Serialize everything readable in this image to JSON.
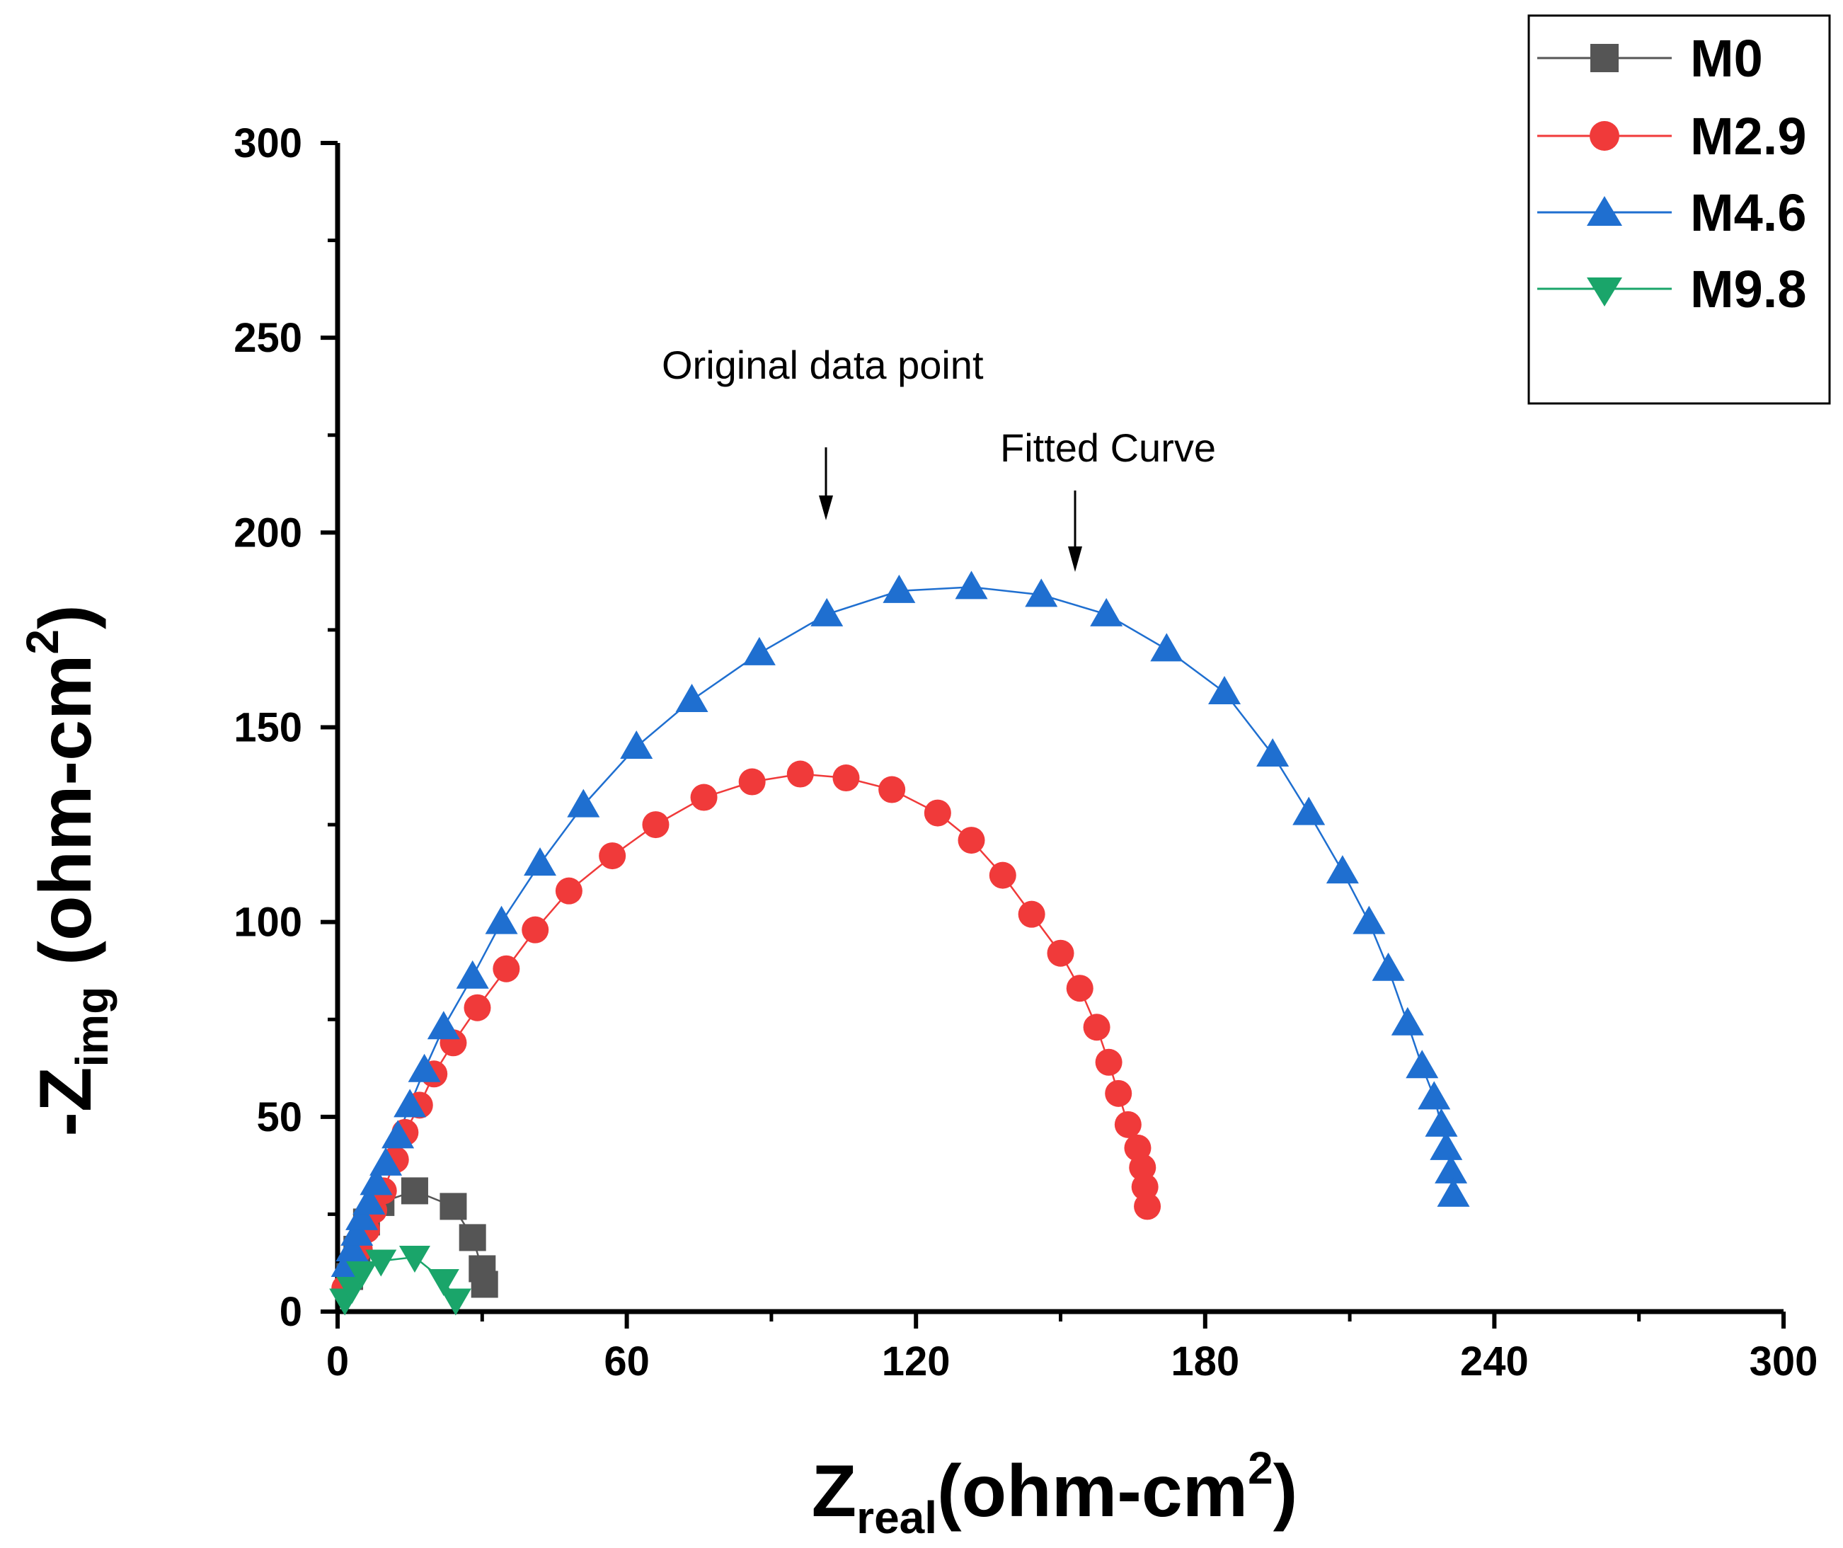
{
  "chart_data": {
    "type": "scatter",
    "title": "",
    "xlabel": {
      "main": "Z",
      "sub": "real",
      "unit": "(ohm-cm",
      "sup": "2",
      "close": ")"
    },
    "ylabel": {
      "prefix": "-Z",
      "sub": "img",
      "unit": "(ohm-cm",
      "sup": "2",
      "close": ")"
    },
    "xlim": [
      0,
      300
    ],
    "ylim": [
      0,
      300
    ],
    "xticks": [
      0,
      60,
      120,
      180,
      240,
      300
    ],
    "xticks_minor": [
      30,
      90,
      150,
      210,
      270
    ],
    "yticks": [
      0,
      50,
      100,
      150,
      200,
      250,
      300
    ],
    "yticks_minor": [
      25,
      75,
      125,
      175,
      225,
      275
    ],
    "grid": false,
    "legend_position": "top-right",
    "annotations": [
      {
        "text": "Original data point",
        "arrow_to": [
          101.5,
          202
        ]
      },
      {
        "text": "Fitted Curve",
        "arrow_to": [
          153,
          190
        ]
      }
    ],
    "series": [
      {
        "name": "M0",
        "marker": "square",
        "color": "#555555",
        "x": [
          2.5,
          4,
          6,
          9,
          16,
          24,
          28,
          30,
          30.5
        ],
        "y": [
          9,
          16,
          23,
          28,
          31,
          27,
          19,
          11,
          7
        ]
      },
      {
        "name": "M2.9",
        "marker": "circle",
        "color": "#f03a3a",
        "x": [
          1.5,
          3,
          4.5,
          6,
          7.5,
          9.5,
          12,
          14,
          17,
          20,
          24,
          29,
          35,
          41,
          48,
          57,
          66,
          76,
          86,
          96,
          105.5,
          115,
          124.5,
          131.5,
          138,
          144,
          150,
          154,
          157.5,
          160,
          162,
          164,
          166,
          167,
          167.5,
          168
        ],
        "y": [
          6,
          10,
          16,
          21,
          26,
          31,
          39,
          46,
          53,
          61,
          69,
          78,
          88,
          98,
          108,
          117,
          125,
          132,
          136,
          138,
          137,
          134,
          128,
          121,
          112,
          102,
          92,
          83,
          73,
          64,
          56,
          48,
          42,
          37,
          32,
          27
        ]
      },
      {
        "name": "M4.6",
        "marker": "triangle-up",
        "color": "#1f6fd0",
        "x": [
          2,
          3,
          4,
          5,
          6.5,
          8,
          10,
          12.5,
          15,
          18,
          22,
          28,
          34,
          42,
          51,
          62,
          73.5,
          87.5,
          101.5,
          116.5,
          131.5,
          146,
          159.5,
          172,
          184,
          194,
          201.5,
          208.5,
          214,
          218,
          222,
          225,
          227.5,
          229,
          230,
          231,
          231.5
        ],
        "y": [
          12,
          16,
          20,
          24,
          28,
          33,
          38,
          45,
          53,
          62,
          73,
          86,
          100,
          115,
          130,
          145,
          157,
          169,
          179,
          185,
          186,
          184,
          179,
          170,
          159,
          143,
          128,
          113,
          100,
          88,
          74,
          63,
          55,
          48,
          42,
          36,
          30
        ]
      },
      {
        "name": "M9.8",
        "marker": "triangle-down",
        "color": "#1aa56a",
        "x": [
          1.5,
          3,
          5,
          9,
          16,
          22,
          24.5
        ],
        "y": [
          3,
          6,
          10,
          13,
          14,
          8,
          3
        ]
      }
    ]
  }
}
